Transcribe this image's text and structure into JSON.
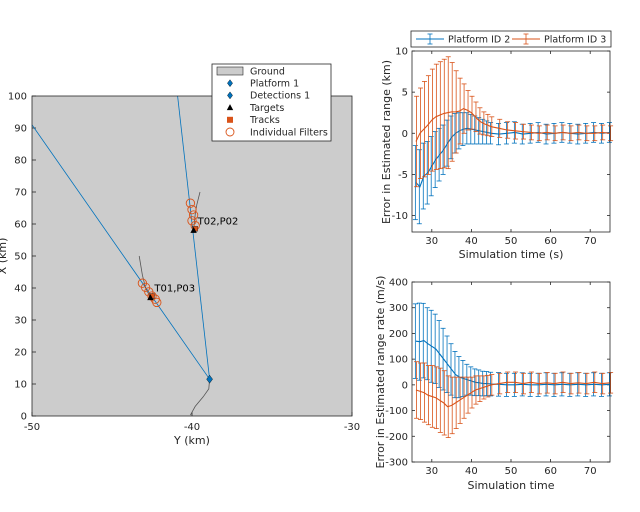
{
  "colors": {
    "ground": "#cccccc",
    "platform": "#0072bd",
    "series2": "#d95319",
    "target": "#000000",
    "axis": "#262626"
  },
  "chart_data": [
    {
      "type": "scatter",
      "xlabel": "Y (km)",
      "ylabel": "X (km)",
      "xlim": [
        -50,
        -30
      ],
      "ylim": [
        0,
        100
      ],
      "xticks": [
        "-50",
        "-40",
        "-30"
      ],
      "yticks": [
        "0",
        "10",
        "20",
        "30",
        "40",
        "50",
        "60",
        "70",
        "80",
        "90",
        "100"
      ],
      "legend": {
        "placement": "top-right-outside",
        "entries": [
          "Ground",
          "Platform 1",
          "Detections 1",
          "Targets",
          "Tracks",
          "Individual Filters"
        ]
      },
      "platform": {
        "x": -38.9,
        "y": 11.5
      },
      "platform_trail": [
        [
          -38.9,
          11.5
        ],
        [
          -38.95,
          8.5
        ],
        [
          -39.3,
          6.0
        ],
        [
          -39.8,
          3.0
        ],
        [
          -40.1,
          0.3
        ]
      ],
      "detection_lines": [
        {
          "to": [
            -40.9,
            100
          ]
        },
        {
          "to": [
            -50,
            91
          ]
        }
      ],
      "targets": [
        {
          "label": "T02,P02",
          "x": -39.9,
          "y": 58.0,
          "trail": [
            [
              -39.9,
              58.0
            ],
            [
              -39.8,
              63.0
            ],
            [
              -39.7,
              66.0
            ],
            [
              -39.5,
              70.0
            ]
          ]
        },
        {
          "label": "T01,P03",
          "x": -42.6,
          "y": 37.0,
          "trail": [
            [
              -42.6,
              37.0
            ],
            [
              -42.9,
              40.0
            ],
            [
              -43.1,
              44.0
            ],
            [
              -43.3,
              50.0
            ]
          ]
        }
      ],
      "tracks": [
        {
          "x": -39.8,
          "y": 58.5
        },
        {
          "x": -42.5,
          "y": 37.5
        }
      ],
      "filters": [
        [
          -40.1,
          66.5
        ],
        [
          -40.0,
          64.5
        ],
        [
          -39.9,
          62.8
        ],
        [
          -40.0,
          61.0
        ],
        [
          -39.8,
          59.5
        ],
        [
          -43.1,
          41.5
        ],
        [
          -42.9,
          40.2
        ],
        [
          -42.7,
          38.8
        ],
        [
          -42.5,
          37.5
        ],
        [
          -42.3,
          36.5
        ],
        [
          -42.2,
          35.5
        ]
      ]
    },
    {
      "type": "line",
      "xlabel": "Simulation time (s)",
      "ylabel": "Error in Estimated range (km)",
      "xlim": [
        25,
        75
      ],
      "ylim": [
        -12,
        10
      ],
      "xticks": [
        "30",
        "40",
        "50",
        "60",
        "70"
      ],
      "yticks": [
        "-10",
        "-5",
        "0",
        "5",
        "10"
      ],
      "legend": {
        "placement": "top-outside",
        "entries": [
          "Platform ID 2",
          "Platform ID 3"
        ]
      },
      "series": [
        {
          "name": "Platform ID 2",
          "x": [
            26,
            27,
            28,
            29,
            30,
            31,
            32,
            33,
            34,
            35,
            36,
            37,
            38,
            39,
            40,
            41,
            42,
            43,
            44,
            45,
            47,
            49,
            51,
            53,
            55,
            57,
            59,
            61,
            63,
            65,
            67,
            69,
            71,
            73,
            75
          ],
          "y": [
            -6.0,
            -6.5,
            -5.2,
            -4.8,
            -4.0,
            -3.2,
            -2.6,
            -2.0,
            -1.2,
            -0.5,
            0.0,
            0.3,
            0.5,
            0.6,
            0.5,
            0.4,
            0.3,
            0.2,
            0.1,
            0.0,
            -0.1,
            0.0,
            0.1,
            -0.1,
            0.0,
            0.1,
            -0.1,
            0.0,
            0.1,
            0.0,
            -0.1,
            0.0,
            0.1,
            0.0,
            0.1
          ],
          "err": [
            4.5,
            4.5,
            4.0,
            3.8,
            3.6,
            3.4,
            3.2,
            3.0,
            2.8,
            2.6,
            2.4,
            2.2,
            2.0,
            1.9,
            1.8,
            1.7,
            1.6,
            1.5,
            1.4,
            1.3,
            1.3,
            1.3,
            1.3,
            1.2,
            1.2,
            1.2,
            1.2,
            1.2,
            1.2,
            1.2,
            1.2,
            1.2,
            1.2,
            1.2,
            1.2
          ]
        },
        {
          "name": "Platform ID 3",
          "x": [
            26,
            27,
            28,
            29,
            30,
            31,
            32,
            33,
            34,
            35,
            36,
            37,
            38,
            39,
            40,
            41,
            42,
            43,
            44,
            45,
            47,
            49,
            51,
            53,
            55,
            57,
            59,
            61,
            63,
            65,
            67,
            69,
            71,
            73,
            75
          ],
          "y": [
            -1.0,
            0.0,
            0.5,
            1.0,
            1.6,
            2.0,
            2.2,
            2.4,
            2.5,
            2.6,
            2.6,
            2.7,
            3.0,
            2.8,
            2.5,
            2.0,
            1.5,
            1.2,
            1.0,
            0.8,
            0.6,
            0.4,
            0.3,
            0.2,
            0.1,
            0.0,
            0.1,
            0.0,
            0.1,
            0.0,
            0.1,
            0.0,
            0.0,
            0.1,
            0.0
          ],
          "err": [
            5.5,
            5.5,
            5.8,
            6.0,
            6.2,
            6.4,
            6.5,
            6.6,
            6.8,
            6.0,
            5.0,
            4.0,
            3.0,
            2.4,
            2.0,
            1.8,
            1.6,
            1.4,
            1.3,
            1.2,
            1.1,
            1.0,
            1.0,
            0.9,
            0.9,
            0.9,
            0.9,
            0.9,
            0.9,
            0.9,
            0.9,
            0.9,
            0.9,
            0.9,
            0.9
          ]
        }
      ]
    },
    {
      "type": "line",
      "xlabel": "Simulation time",
      "ylabel": "Error in Estimated range rate (m/s)",
      "xlim": [
        25,
        75
      ],
      "ylim": [
        -300,
        400
      ],
      "xticks": [
        "30",
        "40",
        "50",
        "60",
        "70"
      ],
      "yticks": [
        "-300",
        "-200",
        "-100",
        "0",
        "100",
        "200",
        "300",
        "400"
      ],
      "series": [
        {
          "name": "Platform ID 2",
          "x": [
            26,
            27,
            28,
            29,
            30,
            31,
            32,
            33,
            34,
            35,
            36,
            37,
            38,
            39,
            40,
            41,
            42,
            43,
            44,
            45,
            47,
            49,
            51,
            53,
            55,
            57,
            59,
            61,
            63,
            65,
            67,
            69,
            71,
            73,
            75
          ],
          "y": [
            170,
            168,
            172,
            160,
            150,
            140,
            120,
            100,
            80,
            60,
            40,
            30,
            25,
            20,
            15,
            10,
            8,
            5,
            5,
            3,
            2,
            0,
            0,
            2,
            0,
            0,
            2,
            0,
            2,
            0,
            2,
            0,
            2,
            0,
            2
          ],
          "err": [
            145,
            150,
            145,
            140,
            140,
            135,
            130,
            120,
            110,
            100,
            90,
            80,
            70,
            60,
            55,
            52,
            50,
            48,
            47,
            46,
            46,
            45,
            45,
            45,
            45,
            45,
            45,
            45,
            45,
            45,
            45,
            45,
            45,
            45,
            45
          ]
        },
        {
          "name": "Platform ID 3",
          "x": [
            26,
            27,
            28,
            29,
            30,
            31,
            32,
            33,
            34,
            35,
            36,
            37,
            38,
            39,
            40,
            41,
            42,
            43,
            44,
            45,
            47,
            49,
            51,
            53,
            55,
            57,
            59,
            61,
            63,
            65,
            67,
            69,
            71,
            73,
            75
          ],
          "y": [
            -20,
            -25,
            -30,
            -40,
            -45,
            -50,
            -60,
            -70,
            -85,
            -80,
            -70,
            -60,
            -50,
            -40,
            -30,
            -20,
            -15,
            -10,
            -5,
            0,
            5,
            10,
            10,
            5,
            10,
            5,
            8,
            5,
            10,
            5,
            8,
            5,
            10,
            5,
            8
          ],
          "err": [
            110,
            110,
            115,
            115,
            120,
            120,
            125,
            125,
            120,
            110,
            100,
            90,
            80,
            70,
            60,
            55,
            50,
            45,
            42,
            40,
            40,
            40,
            40,
            40,
            40,
            40,
            40,
            40,
            40,
            40,
            40,
            40,
            40,
            40,
            40
          ]
        }
      ]
    }
  ]
}
